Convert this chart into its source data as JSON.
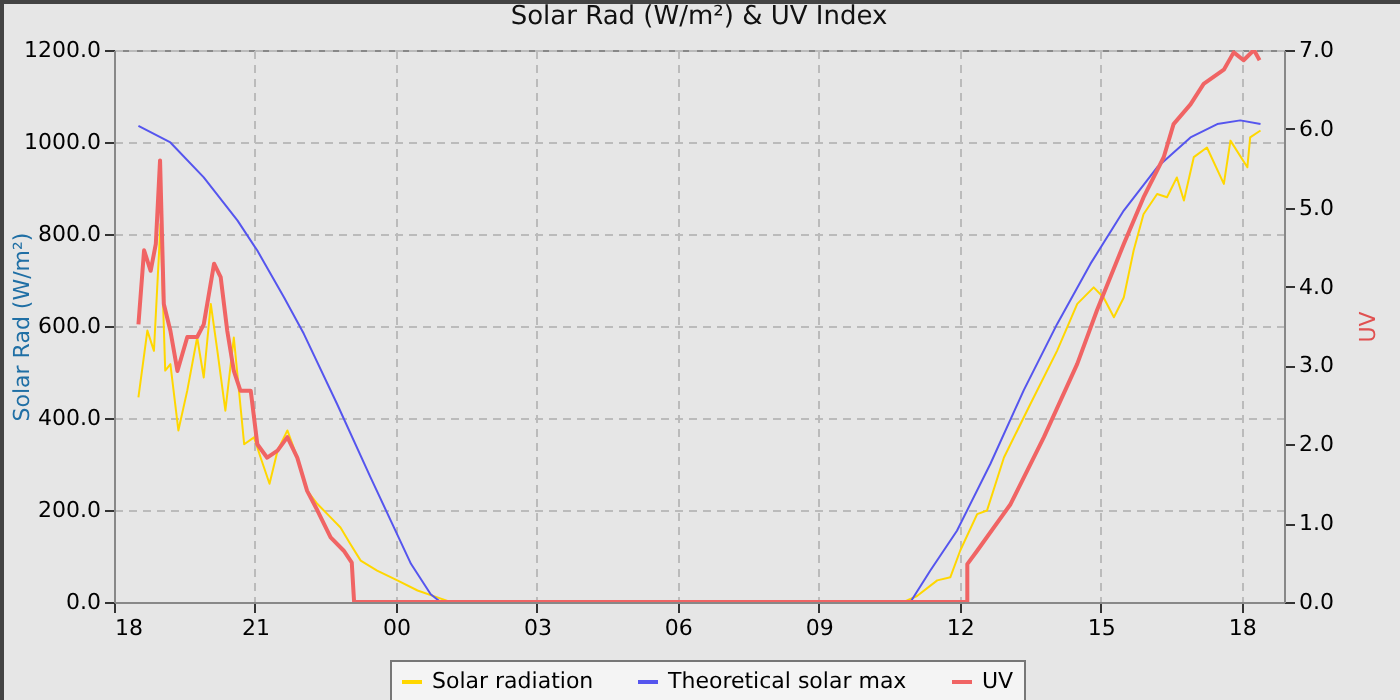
{
  "chart_data": {
    "type": "line",
    "title": "Solar Rad (W/m²) &  UV Index",
    "ylabel": "Solar Rad (W/m²)",
    "y2label": "UV",
    "xlim": [
      18,
      42.9
    ],
    "xticks": [
      {
        "value": 18,
        "label": "18"
      },
      {
        "value": 21,
        "label": "21"
      },
      {
        "value": 24,
        "label": "00"
      },
      {
        "value": 27,
        "label": "03"
      },
      {
        "value": 30,
        "label": "06"
      },
      {
        "value": 33,
        "label": "09"
      },
      {
        "value": 36,
        "label": "12"
      },
      {
        "value": 39,
        "label": "15"
      },
      {
        "value": 42,
        "label": "18"
      }
    ],
    "ylim": [
      0,
      1200
    ],
    "yticks": [
      {
        "value": 0,
        "label": "0.0"
      },
      {
        "value": 200,
        "label": "200.0"
      },
      {
        "value": 400,
        "label": "400.0"
      },
      {
        "value": 600,
        "label": "600.0"
      },
      {
        "value": 800,
        "label": "800.0"
      },
      {
        "value": 1000,
        "label": "1000.0"
      },
      {
        "value": 1200,
        "label": "1200.0"
      }
    ],
    "y2lim": [
      0,
      7
    ],
    "y2ticks": [
      {
        "value": 0,
        "label": "0.0"
      },
      {
        "value": 1,
        "label": "1.0"
      },
      {
        "value": 2,
        "label": "2.0"
      },
      {
        "value": 3,
        "label": "3.0"
      },
      {
        "value": 4,
        "label": "4.0"
      },
      {
        "value": 5,
        "label": "5.0"
      },
      {
        "value": 6,
        "label": "6.0"
      },
      {
        "value": 7,
        "label": "7.0"
      }
    ],
    "grid": true,
    "legend": "bottom",
    "marker": "none",
    "series": [
      {
        "name": "Solar radiation",
        "color": "#ffd700",
        "x": [
          18.52,
          18.71,
          18.85,
          18.99,
          19.09,
          19.2,
          19.37,
          19.56,
          19.77,
          19.91,
          20.06,
          20.2,
          20.37,
          20.55,
          20.77,
          20.98,
          21.12,
          21.31,
          21.48,
          21.69,
          21.9,
          22.11,
          22.33,
          22.61,
          22.82,
          23.03,
          23.25,
          23.6,
          24.03,
          24.46,
          24.88,
          25.16,
          34.81,
          35.09,
          35.52,
          35.8,
          36.01,
          36.37,
          36.58,
          36.94,
          37.5,
          38.07,
          38.5,
          38.85,
          39.06,
          39.28,
          39.49,
          39.7,
          39.91,
          40.2,
          40.41,
          40.62,
          40.77,
          40.98,
          41.26,
          41.62,
          41.76,
          42.12,
          42.18,
          42.4
        ],
        "values": [
          445,
          590,
          546,
          822,
          503,
          517,
          373,
          460,
          575,
          488,
          648,
          546,
          416,
          575,
          343,
          358,
          314,
          257,
          329,
          373,
          314,
          242,
          213,
          184,
          162,
          126,
          90,
          68,
          47,
          25,
          10,
          0,
          0,
          13,
          47,
          54,
          112,
          191,
          199,
          314,
          430,
          546,
          648,
          684,
          662,
          619,
          662,
          764,
          843,
          887,
          880,
          923,
          873,
          967,
          988,
          909,
          1003,
          945,
          1010,
          1025
        ]
      },
      {
        "name": "Theoretical solar max",
        "color": "#5555ee",
        "x": [
          18.52,
          19.2,
          19.91,
          20.63,
          21.05,
          21.62,
          22.04,
          22.75,
          23.46,
          23.89,
          24.32,
          24.74,
          24.95,
          34.95,
          35.37,
          35.94,
          36.65,
          37.36,
          38.07,
          38.78,
          39.49,
          40.2,
          40.91,
          41.48,
          41.97,
          42.4
        ],
        "values": [
          1035,
          999,
          923,
          829,
          764,
          662,
          583,
          430,
          271,
          177,
          83,
          17,
          0,
          0,
          68,
          155,
          300,
          460,
          604,
          735,
          851,
          945,
          1010,
          1039,
          1047,
          1039
        ]
      },
      {
        "name": "UV",
        "color": "#f06464",
        "axis": "y2",
        "x": [
          18.52,
          18.64,
          18.78,
          18.89,
          18.98,
          19.06,
          19.2,
          19.35,
          19.56,
          19.77,
          19.91,
          20.13,
          20.27,
          20.41,
          20.55,
          20.69,
          20.91,
          21.05,
          21.26,
          21.48,
          21.69,
          21.9,
          22.11,
          22.33,
          22.61,
          22.89,
          23.06,
          23.11,
          36.16,
          36.16,
          36.37,
          37.08,
          37.79,
          38.5,
          38.92,
          39.49,
          39.91,
          40.34,
          40.55,
          40.91,
          41.19,
          41.62,
          41.83,
          42.04,
          42.26,
          42.38
        ],
        "values": [
          3.52,
          4.46,
          4.2,
          4.54,
          5.6,
          3.78,
          3.44,
          2.93,
          3.36,
          3.36,
          3.52,
          4.29,
          4.12,
          3.44,
          2.93,
          2.68,
          2.68,
          2.0,
          1.83,
          1.92,
          2.09,
          1.83,
          1.41,
          1.16,
          0.82,
          0.65,
          0.5,
          0,
          0,
          0.48,
          0.65,
          1.24,
          2.09,
          3.02,
          3.7,
          4.54,
          5.13,
          5.64,
          6.06,
          6.31,
          6.57,
          6.75,
          6.97,
          6.87,
          7.0,
          6.87
        ]
      }
    ]
  }
}
